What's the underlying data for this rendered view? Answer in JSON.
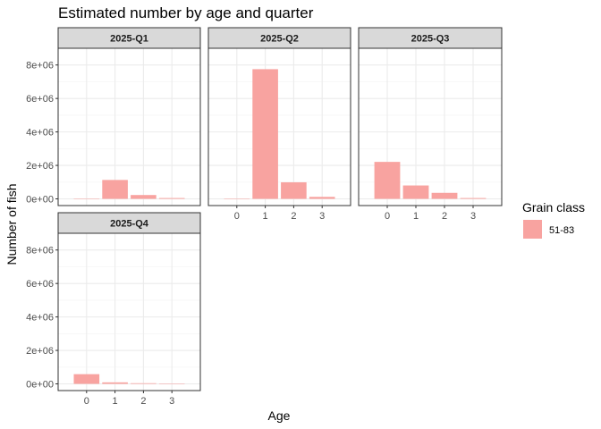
{
  "chart_data": {
    "type": "bar",
    "title": "Estimated number by age and quarter",
    "xlabel": "Age",
    "ylabel": "Number of fish",
    "categories": [
      0,
      1,
      2,
      3
    ],
    "ylim": [
      -400000,
      9000000
    ],
    "y_ticks": [
      0,
      2000000,
      4000000,
      6000000,
      8000000
    ],
    "y_tick_labels": [
      "0e+00",
      "2e+06",
      "4e+06",
      "6e+06",
      "8e+06"
    ],
    "legend": {
      "title": "Grain class",
      "position": "right",
      "entries": [
        {
          "label": "51-83",
          "color": "#F8A3A0"
        }
      ]
    },
    "grid": true,
    "bar_color": "#F8A3A0",
    "facets": [
      {
        "label": "2025-Q1",
        "series": [
          {
            "name": "51-83",
            "values": [
              0,
              1130000,
              230000,
              50000
            ]
          }
        ]
      },
      {
        "label": "2025-Q2",
        "series": [
          {
            "name": "51-83",
            "values": [
              0,
              7750000,
              990000,
              120000
            ]
          }
        ]
      },
      {
        "label": "2025-Q3",
        "series": [
          {
            "name": "51-83",
            "values": [
              2210000,
              800000,
              360000,
              50000
            ]
          }
        ]
      },
      {
        "label": "2025-Q4",
        "series": [
          {
            "name": "51-83",
            "values": [
              580000,
              90000,
              40000,
              10000
            ]
          }
        ]
      }
    ]
  }
}
